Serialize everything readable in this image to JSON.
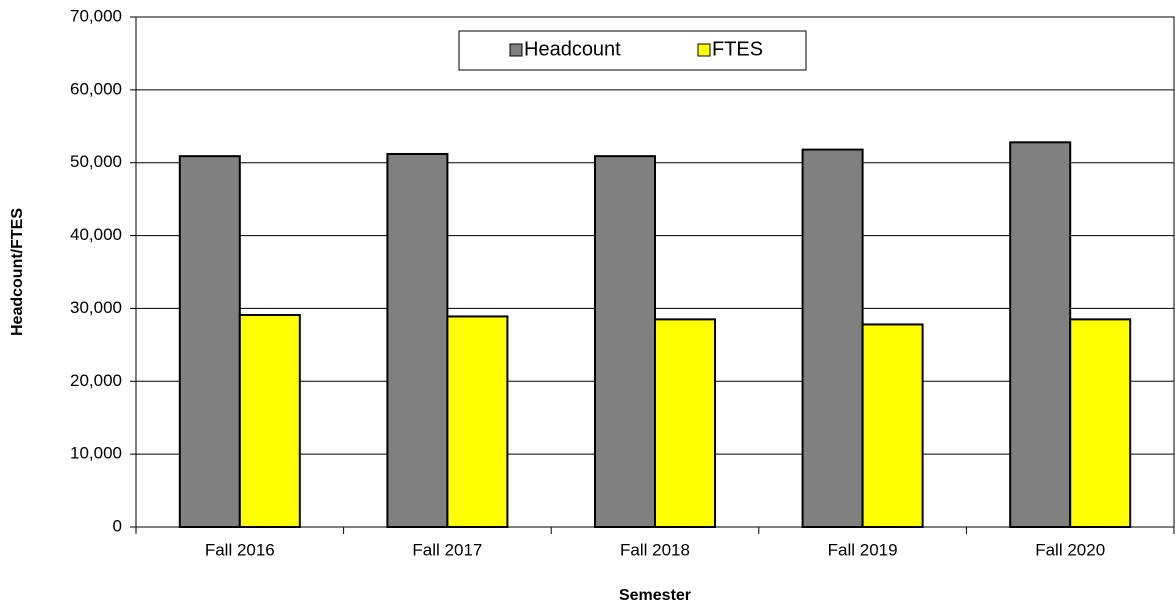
{
  "chart_data": {
    "type": "bar",
    "xlabel": "Semester",
    "ylabel": "Headcount/FTES",
    "categories": [
      "Fall 2016",
      "Fall 2017",
      "Fall 2018",
      "Fall 2019",
      "Fall 2020"
    ],
    "series": [
      {
        "name": "Headcount",
        "color": "#808080",
        "values": [
          50900,
          51200,
          50900,
          51800,
          52800
        ]
      },
      {
        "name": "FTES",
        "color": "#ffff00",
        "values": [
          29100,
          28900,
          28500,
          27800,
          28500
        ]
      }
    ],
    "ylim": [
      0,
      70000
    ],
    "yticks": [
      0,
      {
        "value": 10000,
        "label": "10,000"
      },
      {
        "value": 20000,
        "label": "20,000"
      },
      {
        "value": 30000,
        "label": "30,000"
      },
      {
        "value": 40000,
        "label": "40,000"
      },
      {
        "value": 50000,
        "label": "50,000"
      },
      {
        "value": 60000,
        "label": "60,000"
      },
      {
        "value": 70000,
        "label": "70,000"
      }
    ],
    "grid": true,
    "legend": "top"
  }
}
